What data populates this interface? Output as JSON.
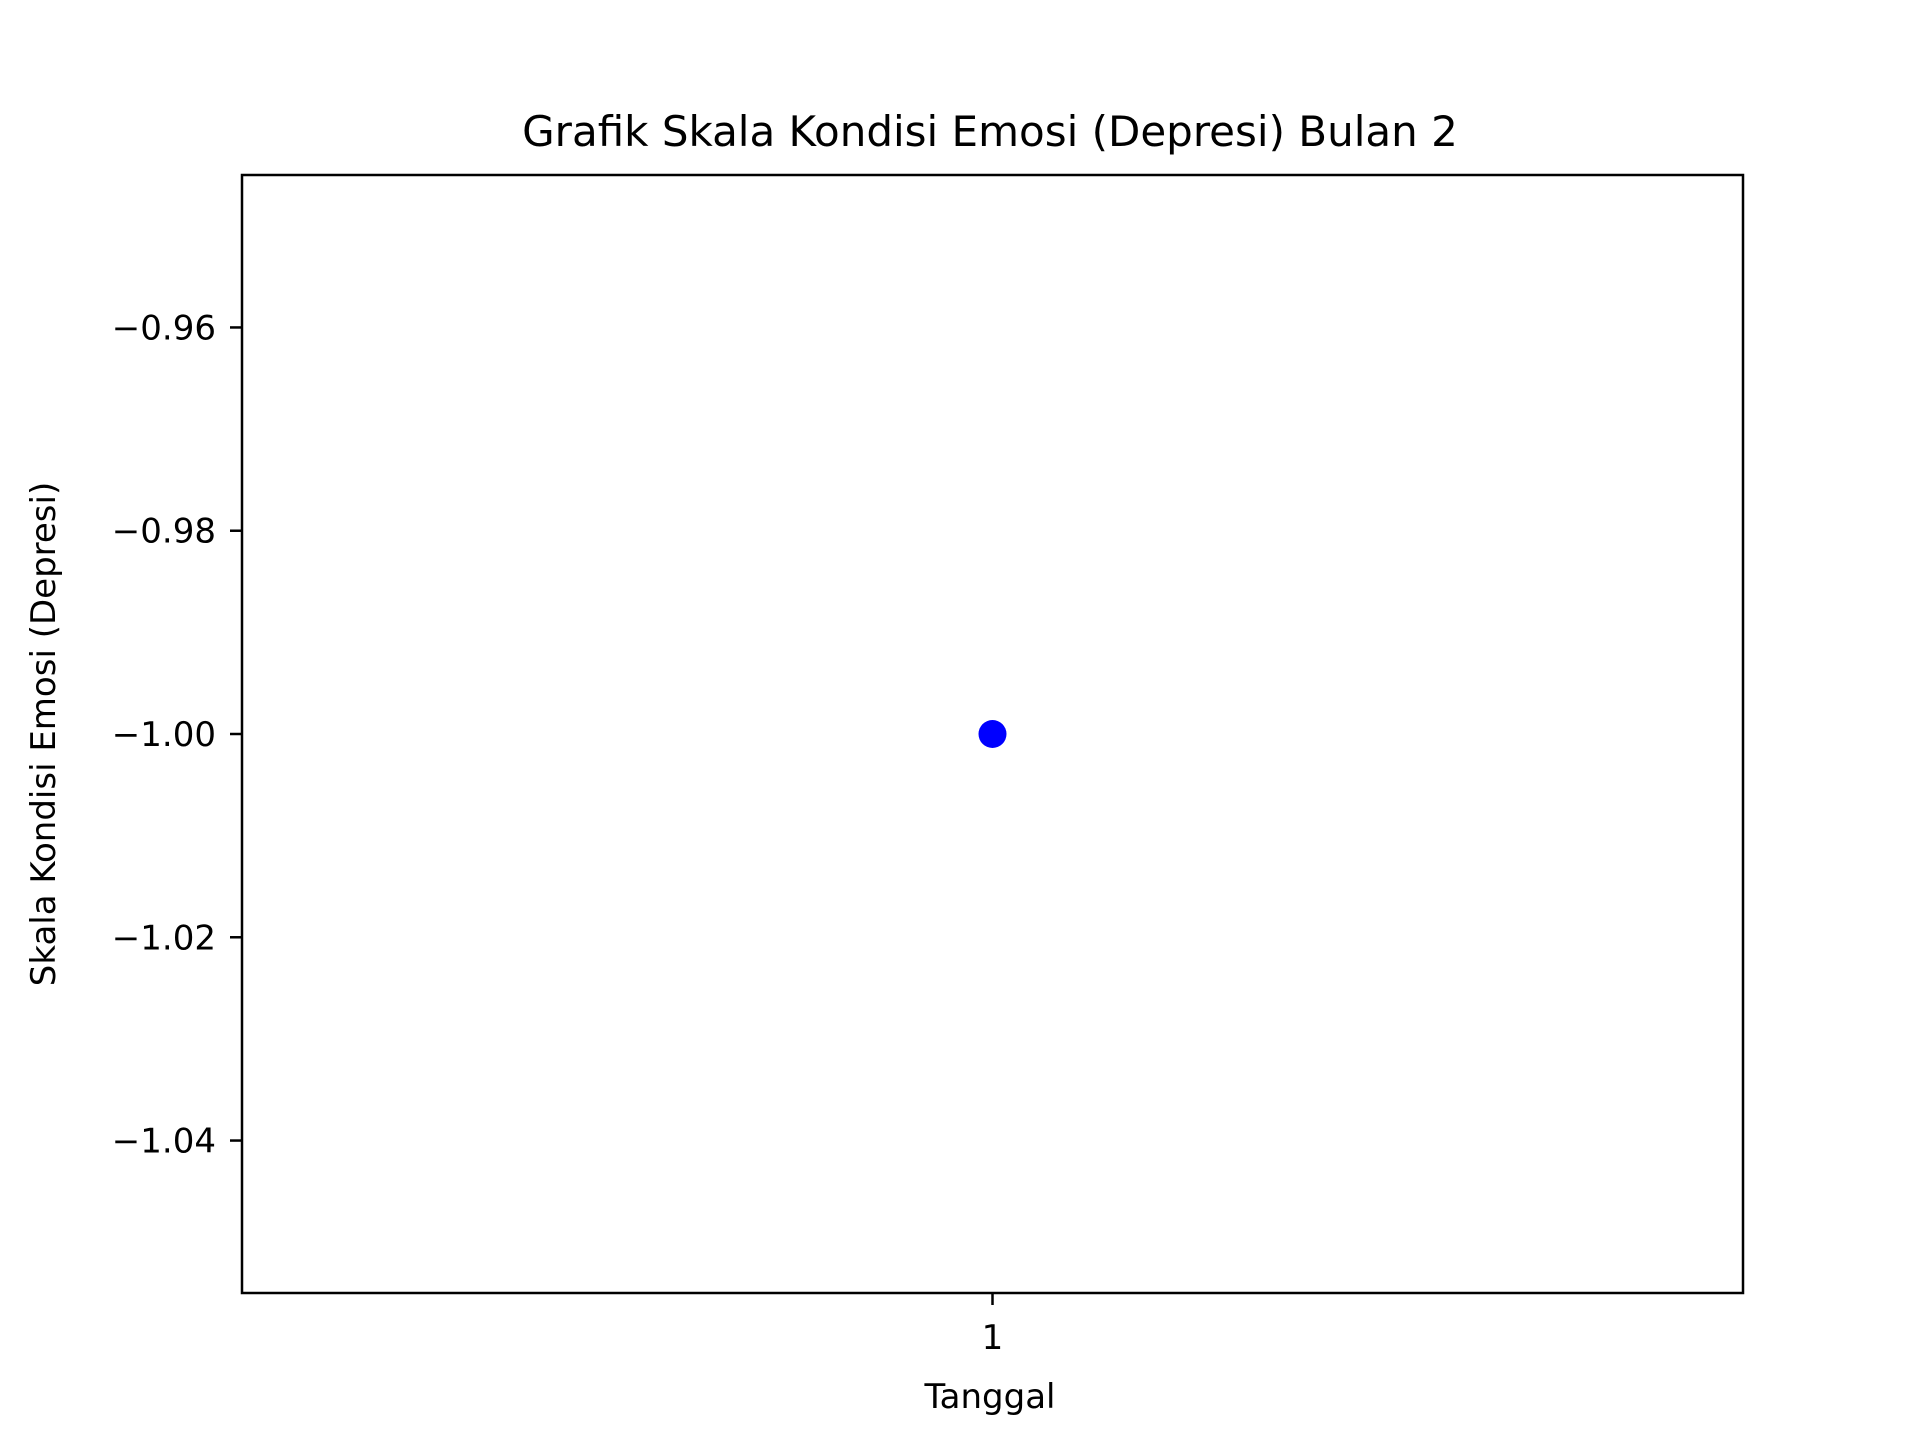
{
  "chart_data": {
    "type": "scatter",
    "title": "Grafik Skala Kondisi Emosi (Depresi) Bulan 2",
    "xlabel": "Tanggal",
    "ylabel": "Skala Kondisi Emosi (Depresi)",
    "x_ticks": [
      "1"
    ],
    "y_ticks": [
      -0.96,
      -0.98,
      -1.0,
      -1.02,
      -1.04
    ],
    "y_tick_labels": [
      "−0.96",
      "−0.98",
      "−1.00",
      "−1.02",
      "−1.04"
    ],
    "xlim": [
      0.5,
      1.5
    ],
    "ylim": [
      -1.055,
      -0.945
    ],
    "grid": false,
    "legend": "none",
    "series": [
      {
        "x": [
          1
        ],
        "y": [
          -1.0
        ],
        "color": "#0000ff",
        "marker": "circle"
      }
    ]
  }
}
